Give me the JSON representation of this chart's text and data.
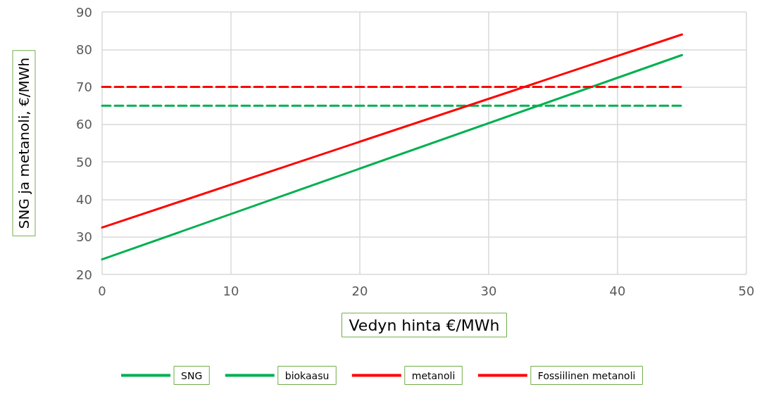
{
  "chart_data": {
    "type": "line",
    "xlabel": "Vedyn hinta €/MWh",
    "ylabel": "SNG ja metanoli, €/MWh",
    "x": [
      0,
      45
    ],
    "series": [
      {
        "name": "SNG",
        "color": "#00b050",
        "values": [
          24,
          78.5
        ],
        "line_style": "solid"
      },
      {
        "name": "biokaasu",
        "color": "#00b050",
        "values": [
          65,
          65
        ],
        "line_style": "dashed"
      },
      {
        "name": "metanoli",
        "color": "#ff0000",
        "values": [
          32.5,
          84
        ],
        "line_style": "solid"
      },
      {
        "name": "Fossiilinen metanoli",
        "color": "#ff0000",
        "values": [
          70,
          70
        ],
        "line_style": "dashed"
      }
    ],
    "xlim": [
      0,
      50
    ],
    "xticks": [
      0,
      10,
      20,
      30,
      40,
      50
    ],
    "ylim": [
      20,
      90
    ],
    "yticks": [
      20,
      30,
      40,
      50,
      60,
      70,
      80,
      90
    ],
    "grid": true,
    "legend": "bottom",
    "marker": "none"
  }
}
